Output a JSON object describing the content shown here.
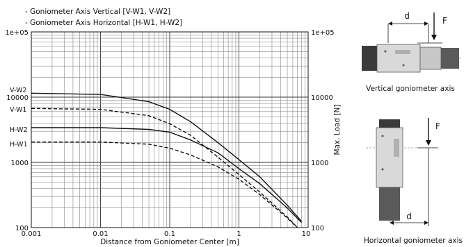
{
  "chart_data": {
    "type": "line",
    "title": "",
    "xscale": "log",
    "yscale": "log",
    "xlim": [
      0.001,
      10
    ],
    "ylim": [
      100,
      100000
    ],
    "xlabel": "Distance from Goniometer Center [m]",
    "ylabel": "Max. Load [N]",
    "x_ticks": [
      "0.001",
      "0.01",
      "0.1",
      "1",
      "10"
    ],
    "y_ticks_left": [
      "1e+05",
      "10000",
      "1000",
      "100"
    ],
    "y_ticks_right": [
      "1e+05",
      "10000",
      "1000",
      "100"
    ],
    "grid": true,
    "legend": [
      "- Goniometer Axis Vertical [V-W1, V-W2]",
      "- Goniometer Axis Horizontal [H-W1, H-W2]"
    ],
    "series": [
      {
        "name": "V-W2",
        "dashed": false,
        "x": [
          0.001,
          0.01,
          0.05,
          0.1,
          0.2,
          0.5,
          1,
          2,
          5,
          8
        ],
        "y": [
          11500,
          11000,
          8500,
          6500,
          4200,
          2000,
          1100,
          600,
          220,
          125
        ]
      },
      {
        "name": "V-W1",
        "dashed": true,
        "x": [
          0.001,
          0.01,
          0.05,
          0.1,
          0.2,
          0.5,
          1,
          2,
          5,
          7
        ],
        "y": [
          6700,
          6500,
          5200,
          3900,
          2600,
          1200,
          650,
          350,
          145,
          100
        ]
      },
      {
        "name": "H-W2",
        "dashed": false,
        "x": [
          0.001,
          0.01,
          0.05,
          0.1,
          0.2,
          0.5,
          1,
          2,
          5,
          8
        ],
        "y": [
          3400,
          3400,
          3200,
          2900,
          2200,
          1400,
          800,
          470,
          200,
          120
        ]
      },
      {
        "name": "H-W1",
        "dashed": true,
        "x": [
          0.001,
          0.01,
          0.05,
          0.1,
          0.2,
          0.5,
          1,
          2,
          5,
          7
        ],
        "y": [
          2050,
          2050,
          1900,
          1650,
          1300,
          850,
          550,
          320,
          140,
          100
        ]
      }
    ]
  },
  "diagrams": {
    "vertical": {
      "caption": "Vertical goniometer axis",
      "distance_label": "d",
      "force_label": "F"
    },
    "horizontal": {
      "caption": "Horizontal goniometer axis",
      "distance_label": "d",
      "force_label": "F"
    }
  }
}
